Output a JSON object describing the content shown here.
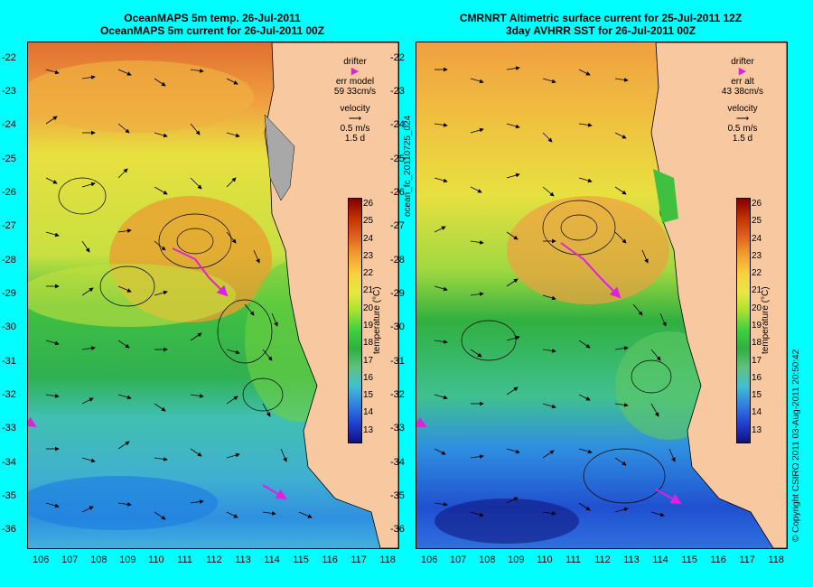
{
  "left_panel": {
    "title_line1": "OceanMAPS 5m temp. 26-Jul-2011",
    "title_line2": "OceanMAPS 5m current for 26-Jul-2011 00Z",
    "legend_drifter": "drifter",
    "legend_err_label": "err model",
    "legend_err_value": "59 33cm/s",
    "legend_velocity": "velocity",
    "legend_speed": "0.5 m/s",
    "legend_duration": "1.5 d"
  },
  "right_panel": {
    "title_line1": "CMRNRT Altimetric surface current for 25-Jul-2011 12Z",
    "title_line2": "3day AVHRR SST for 26-Jul-2011 00Z",
    "legend_drifter": "drifter",
    "legend_err_label": "err alt",
    "legend_err_value": "43 38cm/s",
    "legend_velocity": "velocity",
    "legend_speed": "0.5 m/s",
    "legend_duration": "1.5 d"
  },
  "mid_label": "ocean_fc_20110725_024",
  "copyright": "© Copyright CSIRO 2011   03-Aug-2011 20:50:42",
  "colorbar": {
    "label": "temperature (°C)",
    "ticks": [
      "26",
      "25",
      "24",
      "23",
      "22",
      "21",
      "20",
      "19",
      "18",
      "17",
      "16",
      "15",
      "14",
      "13"
    ],
    "stops": [
      "#800000",
      "#C03000",
      "#E06020",
      "#F0A030",
      "#F8D040",
      "#E8E840",
      "#A8E030",
      "#40D040",
      "#30B040",
      "#60C080",
      "#40C0D0",
      "#3080E0",
      "#2040D0",
      "#101080"
    ]
  },
  "axes": {
    "lat_ticks": [
      "-22",
      "-23",
      "-24",
      "-25",
      "-26",
      "-27",
      "-28",
      "-29",
      "-30",
      "-31",
      "-32",
      "-33",
      "-34",
      "-35",
      "-36"
    ],
    "lon_ticks": [
      "106",
      "107",
      "108",
      "109",
      "110",
      "111",
      "112",
      "113",
      "114",
      "115",
      "116",
      "117",
      "118"
    ],
    "lat_range": [
      -21.5,
      -36.5
    ],
    "lon_range": [
      105.5,
      118.3
    ]
  },
  "colors": {
    "land": "#F8C8A0",
    "drifter": "#E020E0",
    "background": "#00FFFF"
  }
}
